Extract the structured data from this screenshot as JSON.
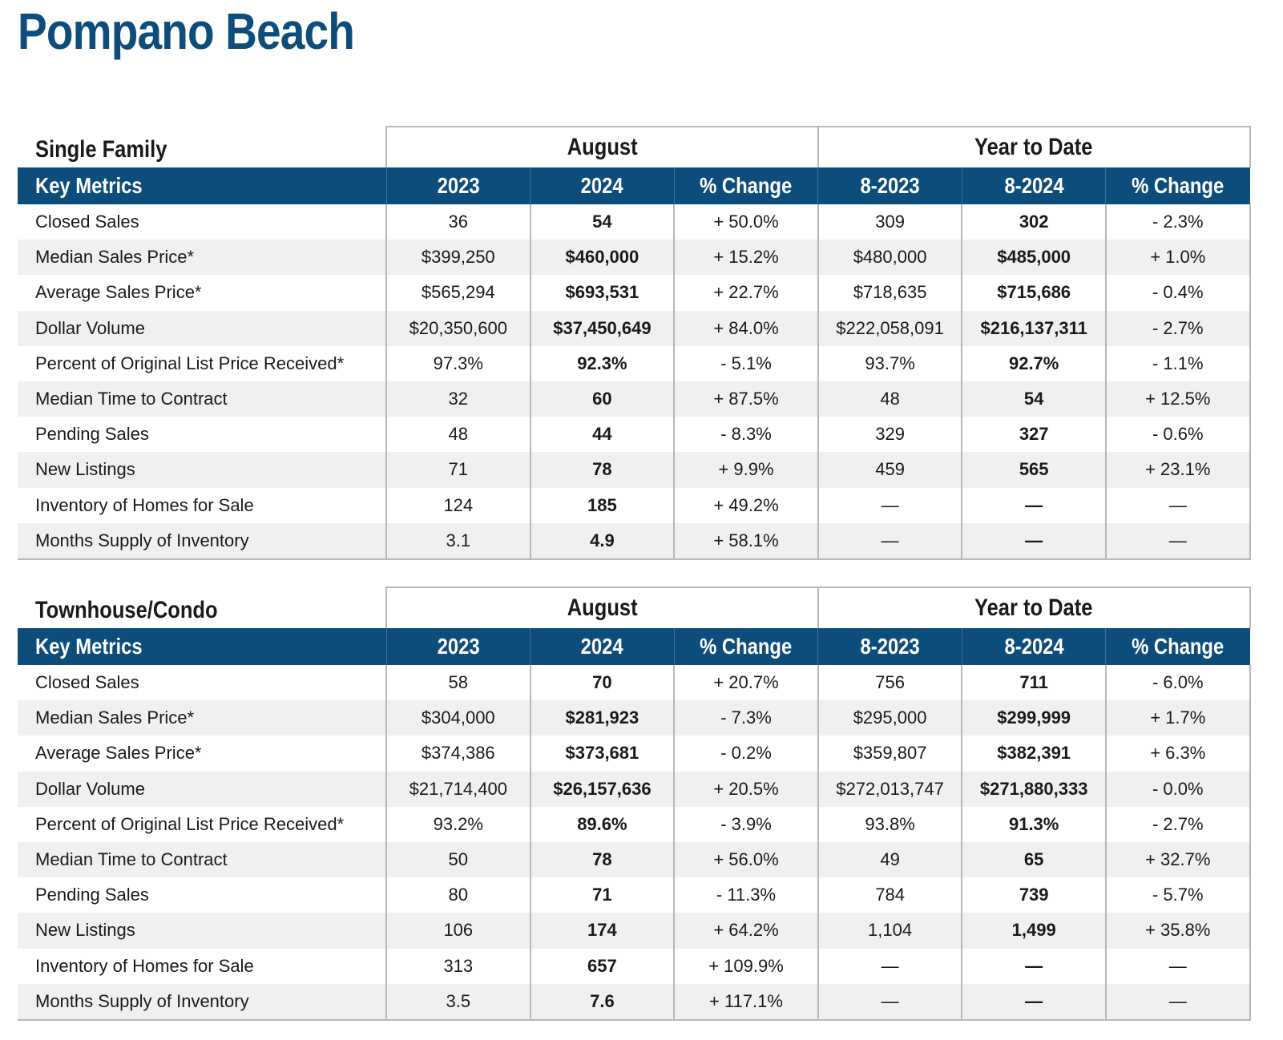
{
  "title": "Pompano Beach",
  "columns": {
    "key_metrics": "Key Metrics",
    "group_month": "August",
    "group_ytd": "Year to Date",
    "c2023": "2023",
    "c2024": "2024",
    "pct_change": "% Change",
    "ytd2023": "8-2023",
    "ytd2024": "8-2024"
  },
  "sections": [
    {
      "name": "Single Family",
      "rows": [
        {
          "metric": "Closed Sales",
          "v2023": "36",
          "v2024": "54",
          "pct": "+ 50.0%",
          "ytd2023": "309",
          "ytd2024": "302",
          "ytd_pct": "- 2.3%"
        },
        {
          "metric": "Median Sales Price*",
          "v2023": "$399,250",
          "v2024": "$460,000",
          "pct": "+ 15.2%",
          "ytd2023": "$480,000",
          "ytd2024": "$485,000",
          "ytd_pct": "+ 1.0%"
        },
        {
          "metric": "Average Sales Price*",
          "v2023": "$565,294",
          "v2024": "$693,531",
          "pct": "+ 22.7%",
          "ytd2023": "$718,635",
          "ytd2024": "$715,686",
          "ytd_pct": "- 0.4%"
        },
        {
          "metric": "Dollar Volume",
          "v2023": "$20,350,600",
          "v2024": "$37,450,649",
          "pct": "+ 84.0%",
          "ytd2023": "$222,058,091",
          "ytd2024": "$216,137,311",
          "ytd_pct": "- 2.7%"
        },
        {
          "metric": "Percent of Original List Price Received*",
          "v2023": "97.3%",
          "v2024": "92.3%",
          "pct": "- 5.1%",
          "ytd2023": "93.7%",
          "ytd2024": "92.7%",
          "ytd_pct": "- 1.1%"
        },
        {
          "metric": "Median Time to Contract",
          "v2023": "32",
          "v2024": "60",
          "pct": "+ 87.5%",
          "ytd2023": "48",
          "ytd2024": "54",
          "ytd_pct": "+ 12.5%"
        },
        {
          "metric": "Pending Sales",
          "v2023": "48",
          "v2024": "44",
          "pct": "- 8.3%",
          "ytd2023": "329",
          "ytd2024": "327",
          "ytd_pct": "- 0.6%"
        },
        {
          "metric": "New Listings",
          "v2023": "71",
          "v2024": "78",
          "pct": "+ 9.9%",
          "ytd2023": "459",
          "ytd2024": "565",
          "ytd_pct": "+ 23.1%"
        },
        {
          "metric": "Inventory of Homes for Sale",
          "v2023": "124",
          "v2024": "185",
          "pct": "+ 49.2%",
          "ytd2023": "—",
          "ytd2024": "—",
          "ytd_pct": "—"
        },
        {
          "metric": "Months Supply of Inventory",
          "v2023": "3.1",
          "v2024": "4.9",
          "pct": "+ 58.1%",
          "ytd2023": "—",
          "ytd2024": "—",
          "ytd_pct": "—"
        }
      ]
    },
    {
      "name": "Townhouse/Condo",
      "rows": [
        {
          "metric": "Closed Sales",
          "v2023": "58",
          "v2024": "70",
          "pct": "+ 20.7%",
          "ytd2023": "756",
          "ytd2024": "711",
          "ytd_pct": "- 6.0%"
        },
        {
          "metric": "Median Sales Price*",
          "v2023": "$304,000",
          "v2024": "$281,923",
          "pct": "- 7.3%",
          "ytd2023": "$295,000",
          "ytd2024": "$299,999",
          "ytd_pct": "+ 1.7%"
        },
        {
          "metric": "Average Sales Price*",
          "v2023": "$374,386",
          "v2024": "$373,681",
          "pct": "- 0.2%",
          "ytd2023": "$359,807",
          "ytd2024": "$382,391",
          "ytd_pct": "+ 6.3%"
        },
        {
          "metric": "Dollar Volume",
          "v2023": "$21,714,400",
          "v2024": "$26,157,636",
          "pct": "+ 20.5%",
          "ytd2023": "$272,013,747",
          "ytd2024": "$271,880,333",
          "ytd_pct": "- 0.0%"
        },
        {
          "metric": "Percent of Original List Price Received*",
          "v2023": "93.2%",
          "v2024": "89.6%",
          "pct": "- 3.9%",
          "ytd2023": "93.8%",
          "ytd2024": "91.3%",
          "ytd_pct": "- 2.7%"
        },
        {
          "metric": "Median Time to Contract",
          "v2023": "50",
          "v2024": "78",
          "pct": "+ 56.0%",
          "ytd2023": "49",
          "ytd2024": "65",
          "ytd_pct": "+ 32.7%"
        },
        {
          "metric": "Pending Sales",
          "v2023": "80",
          "v2024": "71",
          "pct": "- 11.3%",
          "ytd2023": "784",
          "ytd2024": "739",
          "ytd_pct": "- 5.7%"
        },
        {
          "metric": "New Listings",
          "v2023": "106",
          "v2024": "174",
          "pct": "+ 64.2%",
          "ytd2023": "1,104",
          "ytd2024": "1,499",
          "ytd_pct": "+ 35.8%"
        },
        {
          "metric": "Inventory of Homes for Sale",
          "v2023": "313",
          "v2024": "657",
          "pct": "+ 109.9%",
          "ytd2023": "—",
          "ytd2024": "—",
          "ytd_pct": "—"
        },
        {
          "metric": "Months Supply of Inventory",
          "v2023": "3.5",
          "v2024": "7.6",
          "pct": "+ 117.1%",
          "ytd2023": "—",
          "ytd2024": "—",
          "ytd_pct": "—"
        }
      ]
    }
  ]
}
